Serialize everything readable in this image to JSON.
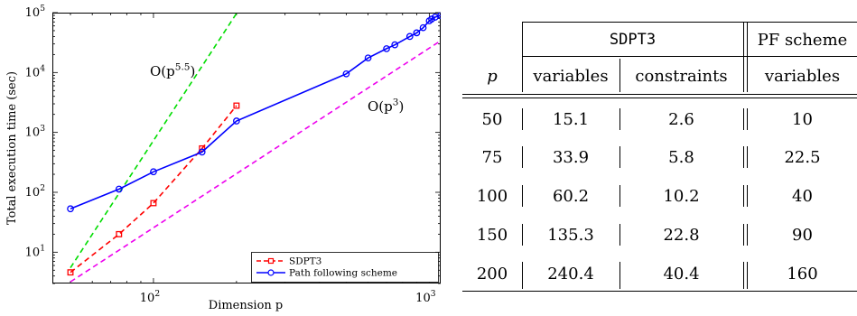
{
  "chart_data": [
    {
      "type": "line",
      "xscale": "log",
      "yscale": "log",
      "xlim": [
        43,
        1100
      ],
      "ylim": [
        3,
        100000
      ],
      "xlabel": "Dimension p",
      "ylabel": "Total execution time (sec)",
      "x_ticks": [
        {
          "value": 100,
          "label": "10",
          "exp": "2"
        },
        {
          "value": 1000,
          "label": "10",
          "exp": "3"
        }
      ],
      "y_ticks": [
        {
          "value": 10,
          "label": "10",
          "exp": "1"
        },
        {
          "value": 100,
          "label": "10",
          "exp": "2"
        },
        {
          "value": 1000,
          "label": "10",
          "exp": "3"
        },
        {
          "value": 10000,
          "label": "10",
          "exp": "4"
        },
        {
          "value": 100000,
          "label": "10",
          "exp": "5"
        }
      ],
      "series": [
        {
          "name": "SDPT3",
          "color": "#ff0000",
          "dash": true,
          "marker": "square",
          "points": [
            [
              50,
              4.6
            ],
            [
              75,
              20
            ],
            [
              100,
              66
            ],
            [
              150,
              540
            ],
            [
              200,
              2800
            ]
          ]
        },
        {
          "name": "Path following scheme",
          "color": "#0000ff",
          "dash": false,
          "marker": "circle",
          "points": [
            [
              50,
              53
            ],
            [
              75,
              113
            ],
            [
              100,
              220
            ],
            [
              150,
              470
            ],
            [
              200,
              1550
            ],
            [
              500,
              9500
            ],
            [
              600,
              17500
            ],
            [
              700,
              25000
            ],
            [
              750,
              29000
            ],
            [
              850,
              40000
            ],
            [
              900,
              46000
            ],
            [
              950,
              56000
            ],
            [
              1000,
              73000
            ],
            [
              1020,
              78000
            ],
            [
              1050,
              84000
            ],
            [
              1100,
              90000
            ]
          ]
        }
      ],
      "reference_lines": [
        {
          "label": "O(p",
          "exp": "5.5",
          "suffix": ")",
          "color": "#00dd00",
          "slope": 5.5,
          "x_from": 50,
          "y_from": 5.5,
          "x_to": 220,
          "y_to": 190000
        },
        {
          "label": "O(p",
          "exp": "3",
          "suffix": ")",
          "color": "#ee00ee",
          "slope": 3,
          "x_from": 50,
          "y_from": 3.2,
          "x_to": 1100,
          "y_to": 34000
        }
      ],
      "legend": {
        "position": "bottom-right",
        "entries": [
          "SDPT3",
          "Path following scheme"
        ]
      }
    },
    {
      "type": "table",
      "header_groups": [
        "SDPT3",
        "PF scheme"
      ],
      "columns": [
        "p",
        "variables",
        "constraints",
        "variables"
      ],
      "rows": [
        [
          "50",
          "15.1",
          "2.6",
          "10"
        ],
        [
          "75",
          "33.9",
          "5.8",
          "22.5"
        ],
        [
          "100",
          "60.2",
          "10.2",
          "40"
        ],
        [
          "150",
          "135.3",
          "22.8",
          "90"
        ],
        [
          "200",
          "240.4",
          "40.4",
          "160"
        ]
      ]
    }
  ]
}
